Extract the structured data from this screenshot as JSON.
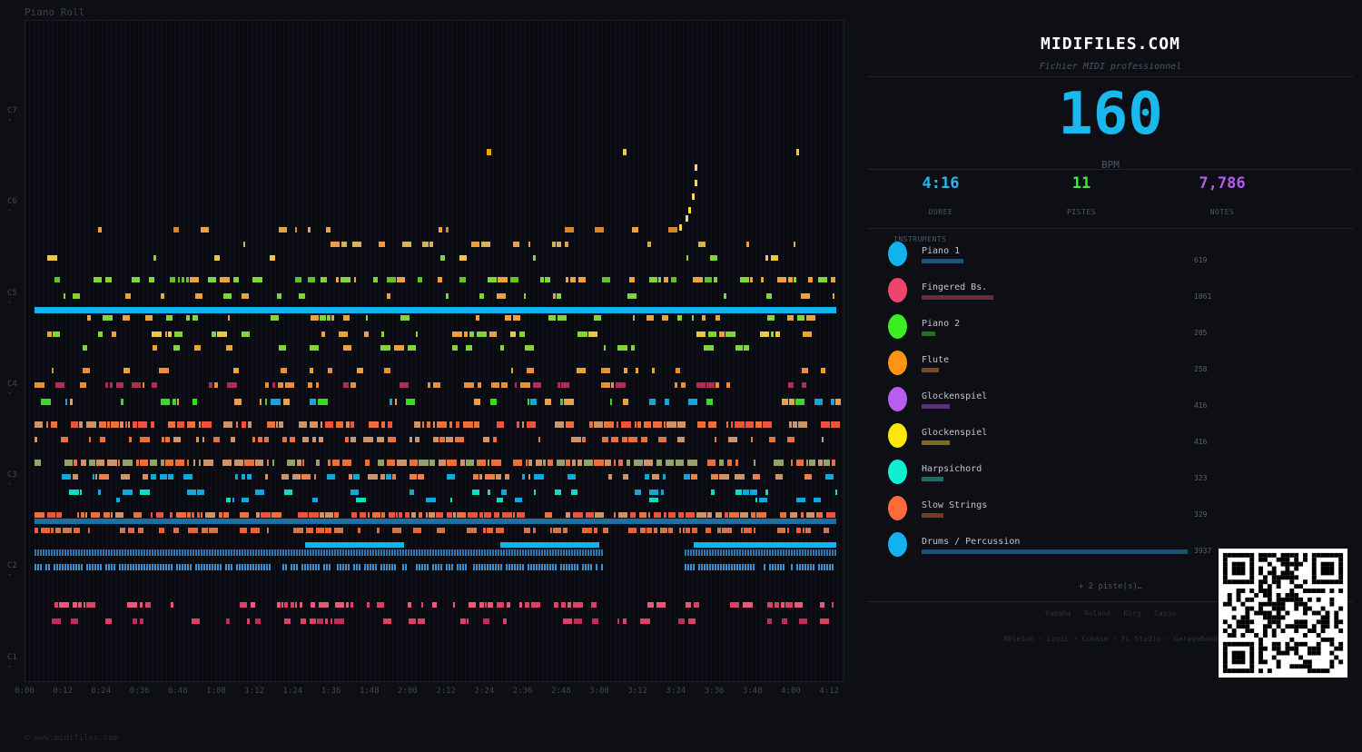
{
  "piano_roll": {
    "title": "Piano Roll",
    "y_labels": [
      "C7",
      "C6",
      "C5",
      "C4",
      "C3",
      "C2",
      "C1"
    ],
    "x_labels": [
      "0:00",
      "0:12",
      "0:24",
      "0:36",
      "0:48",
      "1:00",
      "1:12",
      "1:24",
      "1:36",
      "1:48",
      "2:00",
      "2:12",
      "2:24",
      "2:36",
      "2:48",
      "3:00",
      "3:12",
      "3:24",
      "3:36",
      "3:48",
      "4:00",
      "4:12"
    ]
  },
  "footer": "© www.midifiles.com",
  "panel": {
    "brand": "MIDIFILES.COM",
    "subtitle": "Fichier MIDI professionnel",
    "bpm": "160",
    "bpm_label": "BPM",
    "stats": [
      {
        "value": "4:16",
        "label": "DUREE",
        "color": "#29b6ef"
      },
      {
        "value": "11",
        "label": "PISTES",
        "color": "#3ee63e"
      },
      {
        "value": "7,786",
        "label": "NOTES",
        "color": "#b35cf0"
      }
    ],
    "instruments_title": "INSTRUMENTS",
    "instruments": [
      {
        "name": "Piano 1",
        "count": "619",
        "color": "#11b5ee"
      },
      {
        "name": "Fingered Bs.",
        "count": "1061",
        "color": "#f0446c"
      },
      {
        "name": "Piano 2",
        "count": "205",
        "color": "#3aee22"
      },
      {
        "name": "Flute",
        "count": "258",
        "color": "#ff9414"
      },
      {
        "name": "Glockenspiel",
        "count": "416",
        "color": "#b95cf0"
      },
      {
        "name": "Glockenspiel",
        "count": "416",
        "color": "#ffe60f"
      },
      {
        "name": "Harpsichord",
        "count": "323",
        "color": "#10f0d0"
      },
      {
        "name": "Slow Strings",
        "count": "329",
        "color": "#ff6a3a"
      },
      {
        "name": "Drums / Percussion",
        "count": "3937",
        "color": "#12b3f0"
      }
    ],
    "more": "+ 2 piste(s)…",
    "brands_line1": "Yamaha · Roland · Korg · Casio",
    "brands_line2": "Ableton · Logic · Cubase · FL Studio · GarageBand"
  }
}
